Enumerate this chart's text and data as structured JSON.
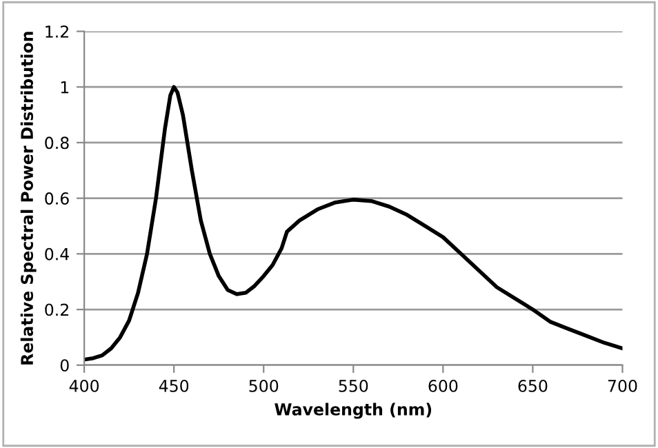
{
  "chart_data": {
    "type": "line",
    "xlabel": "Wavelength (nm)",
    "ylabel": "Relative Spectral Power Distribution",
    "xlim": [
      400,
      700
    ],
    "xticks": [
      400,
      450,
      500,
      550,
      600,
      650,
      700
    ],
    "ylim": [
      0,
      1.2
    ],
    "yticks": [
      {
        "value": 0,
        "label": "0"
      },
      {
        "value": 0.2,
        "label": "0.2"
      },
      {
        "value": 0.4,
        "label": "0.4"
      },
      {
        "value": 0.6,
        "label": "0.6"
      },
      {
        "value": 0.8,
        "label": "0.8"
      },
      {
        "value": 1,
        "label": "1"
      },
      {
        "value": 1.2,
        "label": "1.2"
      }
    ],
    "grid": "y",
    "legend": false,
    "series": [
      {
        "color": "#000000",
        "x": [
          400,
          405,
          410,
          415,
          420,
          425,
          430,
          435,
          440,
          445,
          448,
          450,
          452,
          455,
          460,
          465,
          470,
          475,
          480,
          485,
          490,
          495,
          500,
          505,
          510,
          513,
          520,
          525,
          530,
          540,
          550,
          560,
          570,
          580,
          590,
          600,
          610,
          620,
          630,
          640,
          650,
          660,
          670,
          680,
          690,
          700
        ],
        "values": [
          0.02,
          0.025,
          0.035,
          0.06,
          0.1,
          0.16,
          0.26,
          0.4,
          0.6,
          0.85,
          0.97,
          1.0,
          0.98,
          0.9,
          0.7,
          0.52,
          0.4,
          0.32,
          0.27,
          0.255,
          0.26,
          0.285,
          0.32,
          0.36,
          0.42,
          0.48,
          0.52,
          0.54,
          0.56,
          0.585,
          0.595,
          0.59,
          0.57,
          0.54,
          0.5,
          0.46,
          0.4,
          0.34,
          0.28,
          0.24,
          0.2,
          0.155,
          0.13,
          0.105,
          0.08,
          0.06
        ]
      }
    ]
  }
}
